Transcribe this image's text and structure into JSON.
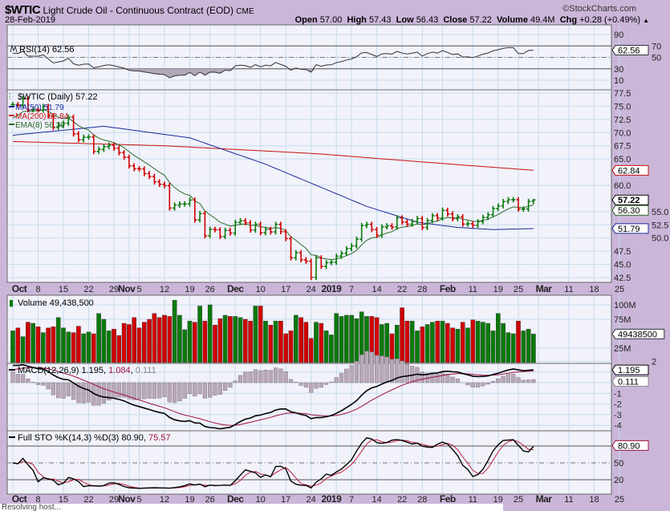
{
  "header": {
    "symbol": "$WTIC",
    "name": "Light Crude Oil - Continuous Contract (EOD)",
    "exchange": "CME",
    "brand": "©StockCharts.com",
    "date": "28-Feb-2019",
    "open_label": "Open",
    "open": "57.00",
    "high_label": "High",
    "high": "57.43",
    "low_label": "Low",
    "low": "56.43",
    "close_label": "Close",
    "close": "57.22",
    "volume_label": "Volume",
    "volume": "49.4M",
    "chg_label": "Chg",
    "chg": "+0.28 (+0.49%)",
    "chg_icon": "up-triangle-icon"
  },
  "status_text": "Resolving host...",
  "colors": {
    "up": "#0a7a0a",
    "down": "#d00000",
    "ma50": "#1c2a9a",
    "ma200": "#c81010",
    "ema8": "#2a6a2a",
    "panel": "#f1f2fa",
    "grid": "#c6dbee",
    "bg": "#cbb6d9"
  },
  "chart_data": [
    {
      "type": "ohlc",
      "panel": "price",
      "legend": {
        "main": "$WTIC (Daily) 57.22",
        "ma50": "MA(50) 51.79",
        "ma200": "MA(200) 62.84",
        "ema8": "EMA(8) 56.30"
      },
      "yticks": [
        "77.5",
        "75.0",
        "72.5",
        "70.0",
        "67.5",
        "65.0",
        "60.0",
        "55.0",
        "52.5",
        "50.0",
        "47.5",
        "45.0",
        "42.5"
      ],
      "ylim": [
        42,
        78
      ],
      "tags": {
        "ma200": "62.84",
        "close": "57.22",
        "ema8": "56.30",
        "ma50": "51.79"
      },
      "x_axis_labels": [
        {
          "label": "Oct",
          "date": "2018-10-01",
          "bold": true
        },
        {
          "label": "8",
          "date": "2018-10-08"
        },
        {
          "label": "15",
          "date": "2018-10-15"
        },
        {
          "label": "22",
          "date": "2018-10-22"
        },
        {
          "label": "29",
          "date": "2018-10-29"
        },
        {
          "label": "Nov",
          "date": "2018-11-01",
          "bold": true
        },
        {
          "label": "5",
          "date": "2018-11-05"
        },
        {
          "label": "12",
          "date": "2018-11-12"
        },
        {
          "label": "19",
          "date": "2018-11-19"
        },
        {
          "label": "26",
          "date": "2018-11-26"
        },
        {
          "label": "Dec",
          "date": "2018-12-03",
          "bold": true
        },
        {
          "label": "10",
          "date": "2018-12-10"
        },
        {
          "label": "17",
          "date": "2018-12-17"
        },
        {
          "label": "24",
          "date": "2018-12-24"
        },
        {
          "label": "2019",
          "date": "2019-01-02",
          "bold": true
        },
        {
          "label": "7",
          "date": "2019-01-07"
        },
        {
          "label": "14",
          "date": "2019-01-14"
        },
        {
          "label": "22",
          "date": "2019-01-22"
        },
        {
          "label": "28",
          "date": "2019-01-28"
        },
        {
          "label": "Feb",
          "date": "2019-02-01",
          "bold": true
        },
        {
          "label": "11",
          "date": "2019-02-11"
        },
        {
          "label": "19",
          "date": "2019-02-19"
        },
        {
          "label": "25",
          "date": "2019-02-25"
        },
        {
          "label": "Mar",
          "date": "2019-03-01",
          "bold": true
        },
        {
          "label": "11",
          "date": "2019-03-11"
        },
        {
          "label": "18",
          "date": "2019-03-18"
        },
        {
          "label": "25",
          "date": "2019-03-25"
        }
      ],
      "dates": [
        "2018-10-01",
        "2018-10-02",
        "2018-10-03",
        "2018-10-04",
        "2018-10-05",
        "2018-10-08",
        "2018-10-09",
        "2018-10-10",
        "2018-10-11",
        "2018-10-12",
        "2018-10-15",
        "2018-10-16",
        "2018-10-17",
        "2018-10-18",
        "2018-10-19",
        "2018-10-22",
        "2018-10-23",
        "2018-10-24",
        "2018-10-25",
        "2018-10-26",
        "2018-10-29",
        "2018-10-30",
        "2018-10-31",
        "2018-11-01",
        "2018-11-02",
        "2018-11-05",
        "2018-11-06",
        "2018-11-07",
        "2018-11-08",
        "2018-11-09",
        "2018-11-12",
        "2018-11-13",
        "2018-11-14",
        "2018-11-15",
        "2018-11-16",
        "2018-11-19",
        "2018-11-20",
        "2018-11-21",
        "2018-11-23",
        "2018-11-26",
        "2018-11-27",
        "2018-11-28",
        "2018-11-29",
        "2018-11-30",
        "2018-12-03",
        "2018-12-04",
        "2018-12-05",
        "2018-12-06",
        "2018-12-07",
        "2018-12-10",
        "2018-12-11",
        "2018-12-12",
        "2018-12-13",
        "2018-12-14",
        "2018-12-17",
        "2018-12-18",
        "2018-12-19",
        "2018-12-20",
        "2018-12-21",
        "2018-12-24",
        "2018-12-26",
        "2018-12-27",
        "2018-12-28",
        "2018-12-31",
        "2019-01-02",
        "2019-01-03",
        "2019-01-04",
        "2019-01-07",
        "2019-01-08",
        "2019-01-09",
        "2019-01-10",
        "2019-01-11",
        "2019-01-14",
        "2019-01-15",
        "2019-01-16",
        "2019-01-17",
        "2019-01-18",
        "2019-01-22",
        "2019-01-23",
        "2019-01-24",
        "2019-01-25",
        "2019-01-28",
        "2019-01-29",
        "2019-01-30",
        "2019-01-31",
        "2019-02-01",
        "2019-02-04",
        "2019-02-05",
        "2019-02-06",
        "2019-02-07",
        "2019-02-08",
        "2019-02-11",
        "2019-02-12",
        "2019-02-13",
        "2019-02-14",
        "2019-02-15",
        "2019-02-19",
        "2019-02-20",
        "2019-02-21",
        "2019-02-22",
        "2019-02-25",
        "2019-02-26",
        "2019-02-27",
        "2019-02-28"
      ],
      "close": [
        75.3,
        75.23,
        76.41,
        74.33,
        74.34,
        74.29,
        74.96,
        73.17,
        70.97,
        71.34,
        71.78,
        72.92,
        69.75,
        68.65,
        69.12,
        69.17,
        66.43,
        66.82,
        67.33,
        67.59,
        67.04,
        66.18,
        65.31,
        63.69,
        63.14,
        63.1,
        62.21,
        61.67,
        60.67,
        60.19,
        59.93,
        55.69,
        56.25,
        56.46,
        56.46,
        57.2,
        53.43,
        54.63,
        50.42,
        51.63,
        51.56,
        50.29,
        51.45,
        50.93,
        52.95,
        53.25,
        52.89,
        51.49,
        52.61,
        51.0,
        51.65,
        51.15,
        52.58,
        51.2,
        49.88,
        46.24,
        47.2,
        45.88,
        45.59,
        42.53,
        46.22,
        44.61,
        45.33,
        45.41,
        46.54,
        47.09,
        47.96,
        48.52,
        49.78,
        52.36,
        52.59,
        51.59,
        50.51,
        52.11,
        52.31,
        52.07,
        53.8,
        53.01,
        52.62,
        53.13,
        53.69,
        51.99,
        53.31,
        54.23,
        53.79,
        55.26,
        54.56,
        53.66,
        54.01,
        52.64,
        52.72,
        52.41,
        53.1,
        53.9,
        54.41,
        55.59,
        56.09,
        56.92,
        57.26,
        57.26,
        55.48,
        55.5,
        56.94,
        57.22
      ],
      "last_bar": {
        "open": 57.0,
        "high": 57.43,
        "low": 56.43,
        "close": 57.22
      },
      "ma50": [
        [
          0,
          69.5
        ],
        [
          18,
          71.2
        ],
        [
          35,
          69.0
        ],
        [
          50,
          64.0
        ],
        [
          60,
          60.0
        ],
        [
          70,
          56.0
        ],
        [
          80,
          53.0
        ],
        [
          88,
          52.0
        ],
        [
          95,
          51.6
        ],
        [
          103,
          51.79
        ]
      ],
      "ma200": [
        [
          0,
          68.3
        ],
        [
          30,
          67.5
        ],
        [
          60,
          66.0
        ],
        [
          80,
          64.5
        ],
        [
          103,
          62.84
        ]
      ]
    },
    {
      "type": "line",
      "panel": "rsi",
      "legend": "RSI(14) 62.56",
      "yticks": [
        "90",
        "70",
        "50",
        "30",
        "10"
      ],
      "ylim": [
        0,
        100
      ],
      "tag": "62.56",
      "last": 62.56
    },
    {
      "type": "bar",
      "panel": "volume",
      "legend": "Volume 49,438,500",
      "yticks": [
        "100M",
        "75M",
        "25M"
      ],
      "tag": "49438500",
      "unit": "M",
      "values": [
        55,
        60,
        45,
        70,
        68,
        62,
        52,
        60,
        62,
        78,
        60,
        53,
        52,
        63,
        50,
        53,
        50,
        85,
        75,
        55,
        58,
        47,
        68,
        66,
        78,
        60,
        70,
        75,
        85,
        78,
        82,
        80,
        108,
        82,
        57,
        72,
        70,
        98,
        72,
        100,
        65,
        76,
        82,
        80,
        80,
        78,
        75,
        72,
        98,
        98,
        72,
        65,
        72,
        72,
        50,
        55,
        82,
        78,
        70,
        42,
        70,
        68,
        55,
        48,
        85,
        80,
        82,
        82,
        76,
        88,
        80,
        80,
        78,
        66,
        68,
        50,
        65,
        95,
        72,
        72,
        55,
        62,
        66,
        70,
        72,
        72,
        68,
        60,
        58,
        70,
        60,
        74,
        72,
        70,
        68,
        55,
        85,
        68,
        52,
        50,
        72,
        55,
        58,
        49.44
      ]
    },
    {
      "type": "line",
      "panel": "macd",
      "legend": {
        "name": "MACD(12,26,9)",
        "macd": "1.195",
        "signal": "1.084",
        "hist": "0.111"
      },
      "yticks": [
        "2",
        "-1",
        "-2",
        "-3",
        "-4"
      ],
      "tags": {
        "macd": "1.195",
        "hist": "0.111"
      }
    },
    {
      "type": "line",
      "panel": "sto",
      "legend": {
        "name": "Full STO %K(14,3) %D(3)",
        "k": "80.90",
        "d": "75.57"
      },
      "yticks": [
        "50",
        "20"
      ],
      "tag": "80.90",
      "levels": [
        80,
        50,
        20
      ]
    }
  ]
}
